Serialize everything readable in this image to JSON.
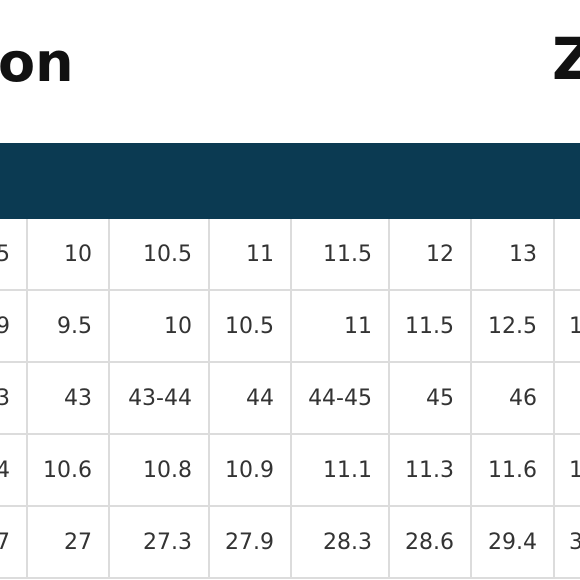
{
  "header": {
    "title": "on",
    "right_title": "Z"
  },
  "table": {
    "rows": [
      [
        "5",
        "10",
        "10.5",
        "11",
        "11.5",
        "12",
        "13",
        null
      ],
      [
        "9",
        "9.5",
        "10",
        "10.5",
        "11",
        "11.5",
        "12.5",
        "1"
      ],
      [
        "3",
        "43",
        "43-44",
        "44",
        "44-45",
        "45",
        "46",
        null
      ],
      [
        "4",
        "10.6",
        "10.8",
        "10.9",
        "11.1",
        "11.3",
        "11.6",
        "1"
      ],
      [
        "7",
        "27",
        "27.3",
        "27.9",
        "28.3",
        "28.6",
        "29.4",
        "3"
      ]
    ]
  }
}
